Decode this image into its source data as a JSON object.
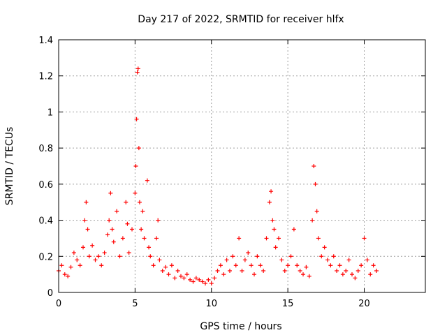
{
  "chart_data": {
    "type": "scatter",
    "title": "Day 217 of 2022, SRMTID for receiver hlfx",
    "xlabel": "GPS time / hours",
    "ylabel": "SRMTID / TECUs",
    "xlim": [
      0,
      24
    ],
    "ylim": [
      0,
      1.4
    ],
    "xticks": [
      0,
      5,
      10,
      15,
      20
    ],
    "xtick_labels": [
      "0",
      "5",
      "10",
      "15",
      "20"
    ],
    "yticks": [
      0,
      0.2,
      0.4,
      0.6,
      0.8,
      1.0,
      1.2,
      1.4
    ],
    "ytick_labels": [
      "0",
      "0.2",
      "0.4",
      "0.6",
      "0.8",
      "1",
      "1.2",
      "1.4"
    ],
    "grid": true,
    "marker": "+",
    "color": "#ff0000",
    "series": [
      {
        "name": "SRMTID",
        "x": [
          0.0,
          0.2,
          0.4,
          0.6,
          0.8,
          1.0,
          1.2,
          1.4,
          1.6,
          1.7,
          1.8,
          1.9,
          2.0,
          2.2,
          2.4,
          2.6,
          2.8,
          3.0,
          3.2,
          3.3,
          3.4,
          3.5,
          3.6,
          3.8,
          4.0,
          4.2,
          4.4,
          4.5,
          4.6,
          4.8,
          5.0,
          5.05,
          5.1,
          5.15,
          5.2,
          5.25,
          5.3,
          5.4,
          5.5,
          5.6,
          5.8,
          5.9,
          6.0,
          6.2,
          6.4,
          6.5,
          6.6,
          6.8,
          7.0,
          7.2,
          7.4,
          7.6,
          7.8,
          8.0,
          8.2,
          8.4,
          8.6,
          8.8,
          9.0,
          9.2,
          9.4,
          9.6,
          9.8,
          10.0,
          10.2,
          10.4,
          10.6,
          10.8,
          11.0,
          11.2,
          11.4,
          11.6,
          11.8,
          12.0,
          12.2,
          12.4,
          12.6,
          12.8,
          13.0,
          13.2,
          13.4,
          13.6,
          13.8,
          13.9,
          14.0,
          14.1,
          14.2,
          14.4,
          14.6,
          14.8,
          15.0,
          15.2,
          15.4,
          15.6,
          15.8,
          16.0,
          16.2,
          16.4,
          16.6,
          16.7,
          16.8,
          16.9,
          17.0,
          17.2,
          17.4,
          17.6,
          17.8,
          18.0,
          18.2,
          18.4,
          18.6,
          18.8,
          19.0,
          19.2,
          19.4,
          19.6,
          19.8,
          20.0,
          20.2,
          20.4,
          20.6,
          20.8
        ],
        "y": [
          0.12,
          0.15,
          0.1,
          0.09,
          0.14,
          0.22,
          0.18,
          0.15,
          0.25,
          0.4,
          0.5,
          0.35,
          0.2,
          0.26,
          0.18,
          0.2,
          0.15,
          0.22,
          0.32,
          0.4,
          0.55,
          0.35,
          0.28,
          0.45,
          0.2,
          0.3,
          0.5,
          0.38,
          0.22,
          0.35,
          0.55,
          0.7,
          0.96,
          1.22,
          1.24,
          0.8,
          0.5,
          0.35,
          0.45,
          0.3,
          0.62,
          0.25,
          0.2,
          0.15,
          0.3,
          0.4,
          0.18,
          0.12,
          0.14,
          0.1,
          0.15,
          0.08,
          0.12,
          0.09,
          0.08,
          0.1,
          0.07,
          0.06,
          0.08,
          0.07,
          0.06,
          0.05,
          0.07,
          0.05,
          0.08,
          0.12,
          0.15,
          0.1,
          0.18,
          0.12,
          0.2,
          0.15,
          0.3,
          0.12,
          0.18,
          0.22,
          0.15,
          0.1,
          0.2,
          0.15,
          0.12,
          0.3,
          0.5,
          0.56,
          0.4,
          0.35,
          0.25,
          0.3,
          0.18,
          0.12,
          0.15,
          0.2,
          0.35,
          0.15,
          0.12,
          0.1,
          0.14,
          0.09,
          0.4,
          0.7,
          0.6,
          0.45,
          0.3,
          0.2,
          0.25,
          0.18,
          0.15,
          0.2,
          0.12,
          0.15,
          0.1,
          0.12,
          0.18,
          0.1,
          0.08,
          0.12,
          0.15,
          0.3,
          0.18,
          0.1,
          0.15,
          0.12
        ]
      }
    ]
  }
}
